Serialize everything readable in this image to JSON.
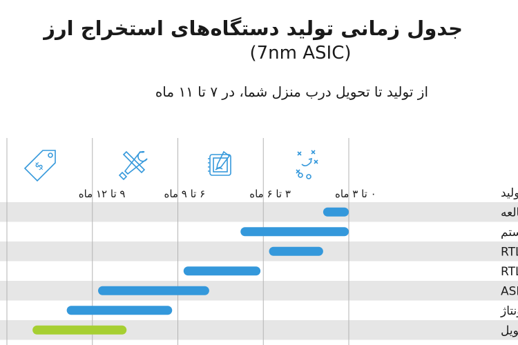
{
  "title": "جدول زمانی تولید دستگاه‌های استخراج ارز",
  "subtitle": "(7nm ASIC)",
  "note": "از تولید تا تحویل درب منزل شما، در ۷ تا ۱۱ ماه",
  "colors": {
    "bar": "#3498db",
    "delivery_bar": "#a6cf32",
    "row_band": "#e6e6e6",
    "grid": "#b3b3b3"
  },
  "chart_data": {
    "type": "gantt",
    "axis_direction": "right-to-left",
    "axis_title": "مرحله تولید",
    "x_range_months": [
      0,
      12
    ],
    "phases": [
      {
        "label": "۰ تا ۳ ماه",
        "icon": "strategy-icon"
      },
      {
        "label": "۳ تا ۶ ماه",
        "icon": "design-tablet-icon"
      },
      {
        "label": "۶ تا ۹ ماه",
        "icon": "tools-icon"
      },
      {
        "label": "۹ تا ۱۲ ماه",
        "icon": "price-tag-icon"
      }
    ],
    "tasks": [
      {
        "name": "مطالعه",
        "start": 0.0,
        "end": 0.9,
        "highlight": false
      },
      {
        "name": "طراحی بورد و سیستم",
        "start": 0.0,
        "end": 3.8,
        "highlight": false
      },
      {
        "name": "RTL",
        "start": 0.9,
        "end": 2.8,
        "highlight": false
      },
      {
        "name": "RTL to GDSll",
        "start": 3.1,
        "end": 5.8,
        "highlight": false
      },
      {
        "name": "ساخت ASIC",
        "start": 4.9,
        "end": 8.8,
        "highlight": false
      },
      {
        "name": "مونتاژ",
        "start": 6.2,
        "end": 9.9,
        "highlight": false
      },
      {
        "name": "تحویل",
        "start": 7.8,
        "end": 11.1,
        "highlight": true
      }
    ]
  }
}
